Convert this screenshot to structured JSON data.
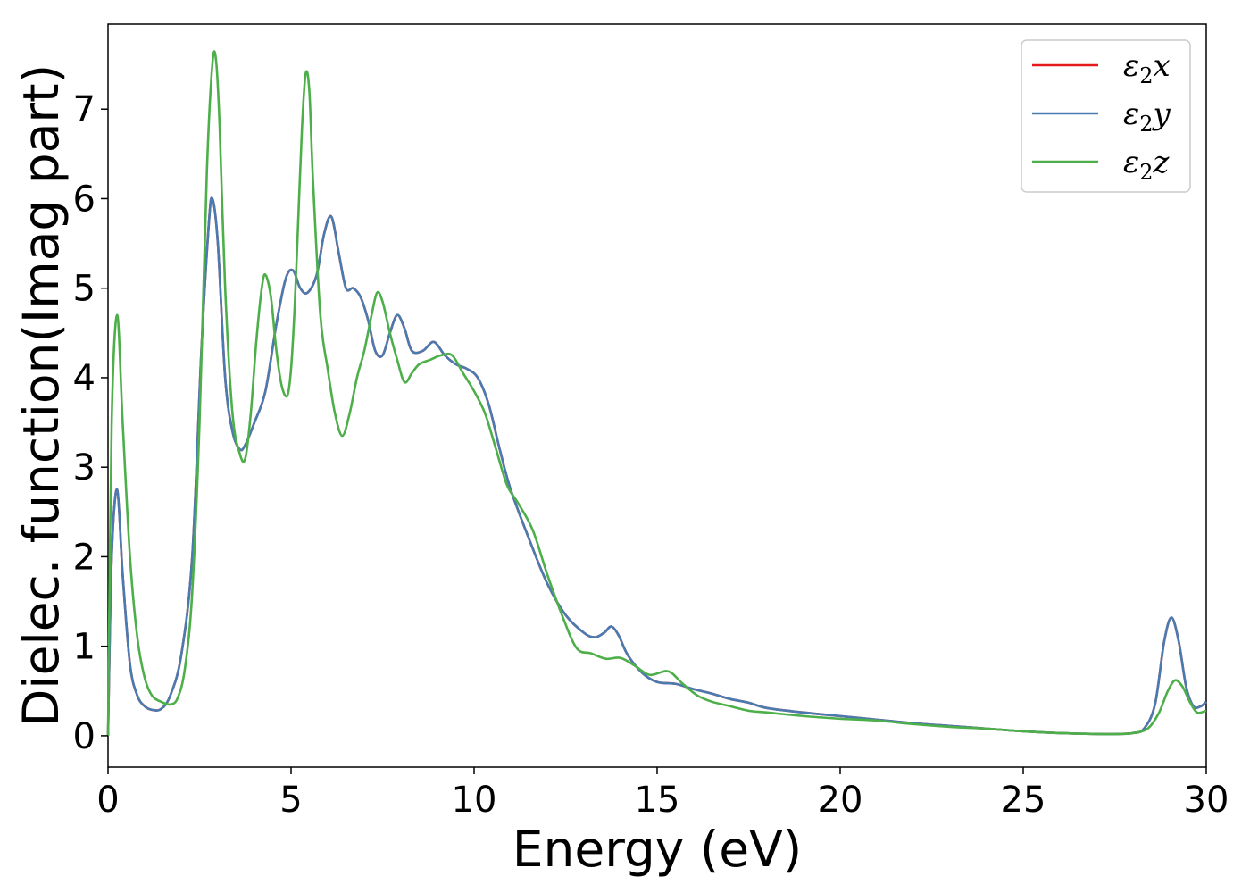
{
  "chart_data": {
    "type": "line",
    "xlabel": "Energy (eV)",
    "ylabel": "Dielec. function(Imag part)",
    "xlim": [
      0,
      30
    ],
    "ylim": [
      -0.35,
      7.95
    ],
    "xticks": [
      0,
      5,
      10,
      15,
      20,
      25,
      30
    ],
    "yticks": [
      0,
      1,
      2,
      3,
      4,
      5,
      6,
      7
    ],
    "grid": false,
    "legend_position": "top-right",
    "series": [
      {
        "name": "ε2x",
        "legend_base": "ε",
        "legend_sub": "2",
        "legend_suffix": "x",
        "color": "#e41a1c",
        "x": [
          0,
          0.1,
          0.25,
          0.4,
          0.6,
          0.8,
          1.0,
          1.2,
          1.45,
          1.7,
          2.0,
          2.3,
          2.55,
          2.75,
          2.85,
          3.0,
          3.2,
          3.4,
          3.6,
          3.75,
          4.0,
          4.3,
          4.6,
          4.85,
          5.05,
          5.25,
          5.45,
          5.7,
          5.9,
          6.1,
          6.3,
          6.5,
          6.7,
          6.9,
          7.1,
          7.3,
          7.5,
          7.7,
          7.9,
          8.1,
          8.3,
          8.6,
          8.9,
          9.2,
          9.5,
          9.8,
          10.1,
          10.4,
          10.7,
          11.0,
          11.5,
          12.0,
          12.5,
          13.0,
          13.3,
          13.55,
          13.75,
          13.95,
          14.2,
          14.6,
          15.0,
          15.5,
          16.0,
          16.5,
          17.0,
          17.5,
          18.0,
          19.0,
          20.0,
          21.0,
          22.0,
          23.0,
          24.0,
          25.0,
          26.0,
          27.0,
          27.6,
          28.0,
          28.3,
          28.6,
          28.85,
          29.05,
          29.25,
          29.45,
          29.65,
          29.85,
          30.0
        ],
        "y": [
          0,
          2.0,
          2.75,
          1.8,
          0.8,
          0.45,
          0.33,
          0.29,
          0.3,
          0.45,
          0.9,
          2.0,
          4.3,
          5.7,
          6.0,
          5.5,
          4.0,
          3.4,
          3.2,
          3.25,
          3.5,
          3.85,
          4.6,
          5.1,
          5.2,
          5.0,
          4.95,
          5.15,
          5.6,
          5.8,
          5.4,
          5.0,
          5.0,
          4.9,
          4.65,
          4.3,
          4.25,
          4.5,
          4.7,
          4.55,
          4.3,
          4.3,
          4.4,
          4.25,
          4.15,
          4.1,
          4.0,
          3.7,
          3.2,
          2.75,
          2.2,
          1.7,
          1.35,
          1.15,
          1.1,
          1.15,
          1.22,
          1.12,
          0.9,
          0.7,
          0.6,
          0.58,
          0.52,
          0.47,
          0.41,
          0.37,
          0.31,
          0.26,
          0.22,
          0.18,
          0.14,
          0.11,
          0.08,
          0.05,
          0.03,
          0.02,
          0.02,
          0.03,
          0.08,
          0.35,
          1.05,
          1.32,
          1.05,
          0.55,
          0.33,
          0.33,
          0.38
        ]
      },
      {
        "name": "ε2y",
        "legend_base": "ε",
        "legend_sub": "2",
        "legend_suffix": "y",
        "color": "#4a7bb0",
        "x": [
          0,
          0.1,
          0.25,
          0.4,
          0.6,
          0.8,
          1.0,
          1.2,
          1.45,
          1.7,
          2.0,
          2.3,
          2.55,
          2.75,
          2.85,
          3.0,
          3.2,
          3.4,
          3.6,
          3.75,
          4.0,
          4.3,
          4.6,
          4.85,
          5.05,
          5.25,
          5.45,
          5.7,
          5.9,
          6.1,
          6.3,
          6.5,
          6.7,
          6.9,
          7.1,
          7.3,
          7.5,
          7.7,
          7.9,
          8.1,
          8.3,
          8.6,
          8.9,
          9.2,
          9.5,
          9.8,
          10.1,
          10.4,
          10.7,
          11.0,
          11.5,
          12.0,
          12.5,
          13.0,
          13.3,
          13.55,
          13.75,
          13.95,
          14.2,
          14.6,
          15.0,
          15.5,
          16.0,
          16.5,
          17.0,
          17.5,
          18.0,
          19.0,
          20.0,
          21.0,
          22.0,
          23.0,
          24.0,
          25.0,
          26.0,
          27.0,
          27.6,
          28.0,
          28.3,
          28.6,
          28.85,
          29.05,
          29.25,
          29.45,
          29.65,
          29.85,
          30.0
        ],
        "y": [
          0,
          2.0,
          2.75,
          1.8,
          0.8,
          0.45,
          0.33,
          0.29,
          0.3,
          0.45,
          0.9,
          2.0,
          4.3,
          5.7,
          6.0,
          5.5,
          4.0,
          3.4,
          3.2,
          3.25,
          3.5,
          3.85,
          4.6,
          5.1,
          5.2,
          5.0,
          4.95,
          5.15,
          5.6,
          5.8,
          5.4,
          5.0,
          5.0,
          4.9,
          4.65,
          4.3,
          4.25,
          4.5,
          4.7,
          4.55,
          4.3,
          4.3,
          4.4,
          4.25,
          4.15,
          4.1,
          4.0,
          3.7,
          3.2,
          2.75,
          2.2,
          1.7,
          1.35,
          1.15,
          1.1,
          1.15,
          1.22,
          1.12,
          0.9,
          0.7,
          0.6,
          0.58,
          0.52,
          0.47,
          0.41,
          0.37,
          0.31,
          0.26,
          0.22,
          0.18,
          0.14,
          0.11,
          0.08,
          0.05,
          0.03,
          0.02,
          0.02,
          0.03,
          0.08,
          0.35,
          1.05,
          1.32,
          1.05,
          0.55,
          0.33,
          0.33,
          0.38
        ]
      },
      {
        "name": "ε2z",
        "legend_base": "ε",
        "legend_sub": "2",
        "legend_suffix": "z",
        "color": "#4daf4a",
        "x": [
          0,
          0.1,
          0.25,
          0.4,
          0.6,
          0.8,
          1.0,
          1.2,
          1.45,
          1.7,
          1.9,
          2.1,
          2.3,
          2.5,
          2.7,
          2.85,
          2.95,
          3.05,
          3.2,
          3.4,
          3.6,
          3.75,
          3.9,
          4.05,
          4.2,
          4.3,
          4.45,
          4.6,
          4.75,
          4.9,
          5.0,
          5.1,
          5.2,
          5.3,
          5.4,
          5.5,
          5.6,
          5.8,
          6.0,
          6.2,
          6.4,
          6.6,
          6.8,
          7.0,
          7.2,
          7.35,
          7.5,
          7.7,
          7.9,
          8.1,
          8.3,
          8.5,
          8.8,
          9.1,
          9.4,
          9.7,
          10.0,
          10.3,
          10.6,
          10.9,
          11.2,
          11.6,
          12.0,
          12.4,
          12.8,
          13.2,
          13.6,
          14.0,
          14.4,
          14.8,
          15.3,
          15.7,
          16.1,
          16.5,
          17.0,
          17.5,
          18.0,
          19.0,
          20.0,
          21.0,
          22.0,
          23.0,
          24.0,
          25.0,
          26.0,
          27.0,
          27.6,
          28.0,
          28.4,
          28.7,
          28.95,
          29.15,
          29.35,
          29.55,
          29.75,
          30.0
        ],
        "y": [
          0,
          3.5,
          4.7,
          3.5,
          2.0,
          1.1,
          0.65,
          0.45,
          0.38,
          0.35,
          0.42,
          0.75,
          1.6,
          3.5,
          6.3,
          7.5,
          7.55,
          6.8,
          5.0,
          3.6,
          3.15,
          3.1,
          3.6,
          4.4,
          5.0,
          5.15,
          4.9,
          4.3,
          3.9,
          3.8,
          4.1,
          4.8,
          5.8,
          6.8,
          7.4,
          7.2,
          6.2,
          4.7,
          4.1,
          3.6,
          3.35,
          3.6,
          4.0,
          4.3,
          4.7,
          4.95,
          4.85,
          4.5,
          4.2,
          3.95,
          4.05,
          4.15,
          4.2,
          4.25,
          4.25,
          4.05,
          3.85,
          3.6,
          3.2,
          2.8,
          2.6,
          2.3,
          1.8,
          1.35,
          0.98,
          0.92,
          0.86,
          0.87,
          0.78,
          0.68,
          0.72,
          0.58,
          0.45,
          0.38,
          0.33,
          0.28,
          0.26,
          0.22,
          0.19,
          0.17,
          0.13,
          0.1,
          0.08,
          0.05,
          0.03,
          0.02,
          0.02,
          0.03,
          0.08,
          0.25,
          0.5,
          0.62,
          0.55,
          0.38,
          0.26,
          0.28
        ]
      }
    ]
  }
}
